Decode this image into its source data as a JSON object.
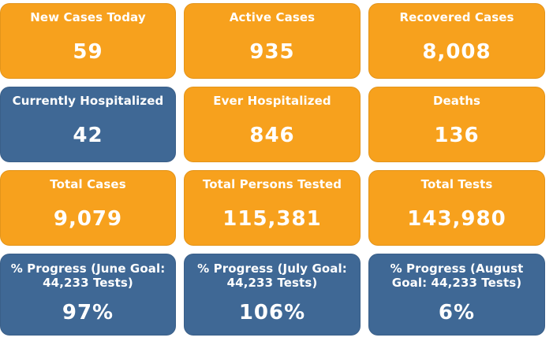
{
  "colors": {
    "orange": "#f7a11d",
    "blue": "#3f6895",
    "text": "#ffffff"
  },
  "tiles": [
    {
      "label": "New Cases Today",
      "value": "59",
      "color": "orange"
    },
    {
      "label": "Active Cases",
      "value": "935",
      "color": "orange"
    },
    {
      "label": "Recovered Cases",
      "value": "8,008",
      "color": "orange"
    },
    {
      "label": "Currently Hospitalized",
      "value": "42",
      "color": "blue"
    },
    {
      "label": "Ever Hospitalized",
      "value": "846",
      "color": "orange"
    },
    {
      "label": "Deaths",
      "value": "136",
      "color": "orange"
    },
    {
      "label": "Total Cases",
      "value": "9,079",
      "color": "orange"
    },
    {
      "label": "Total Persons Tested",
      "value": "115,381",
      "color": "orange"
    },
    {
      "label": "Total Tests",
      "value": "143,980",
      "color": "orange"
    },
    {
      "label": "% Progress (June Goal: 44,233 Tests)",
      "value": "97%",
      "color": "blue"
    },
    {
      "label": "% Progress (July Goal: 44,233 Tests)",
      "value": "106%",
      "color": "blue"
    },
    {
      "label": "% Progress (August Goal: 44,233 Tests)",
      "value": "6%",
      "color": "blue"
    }
  ]
}
